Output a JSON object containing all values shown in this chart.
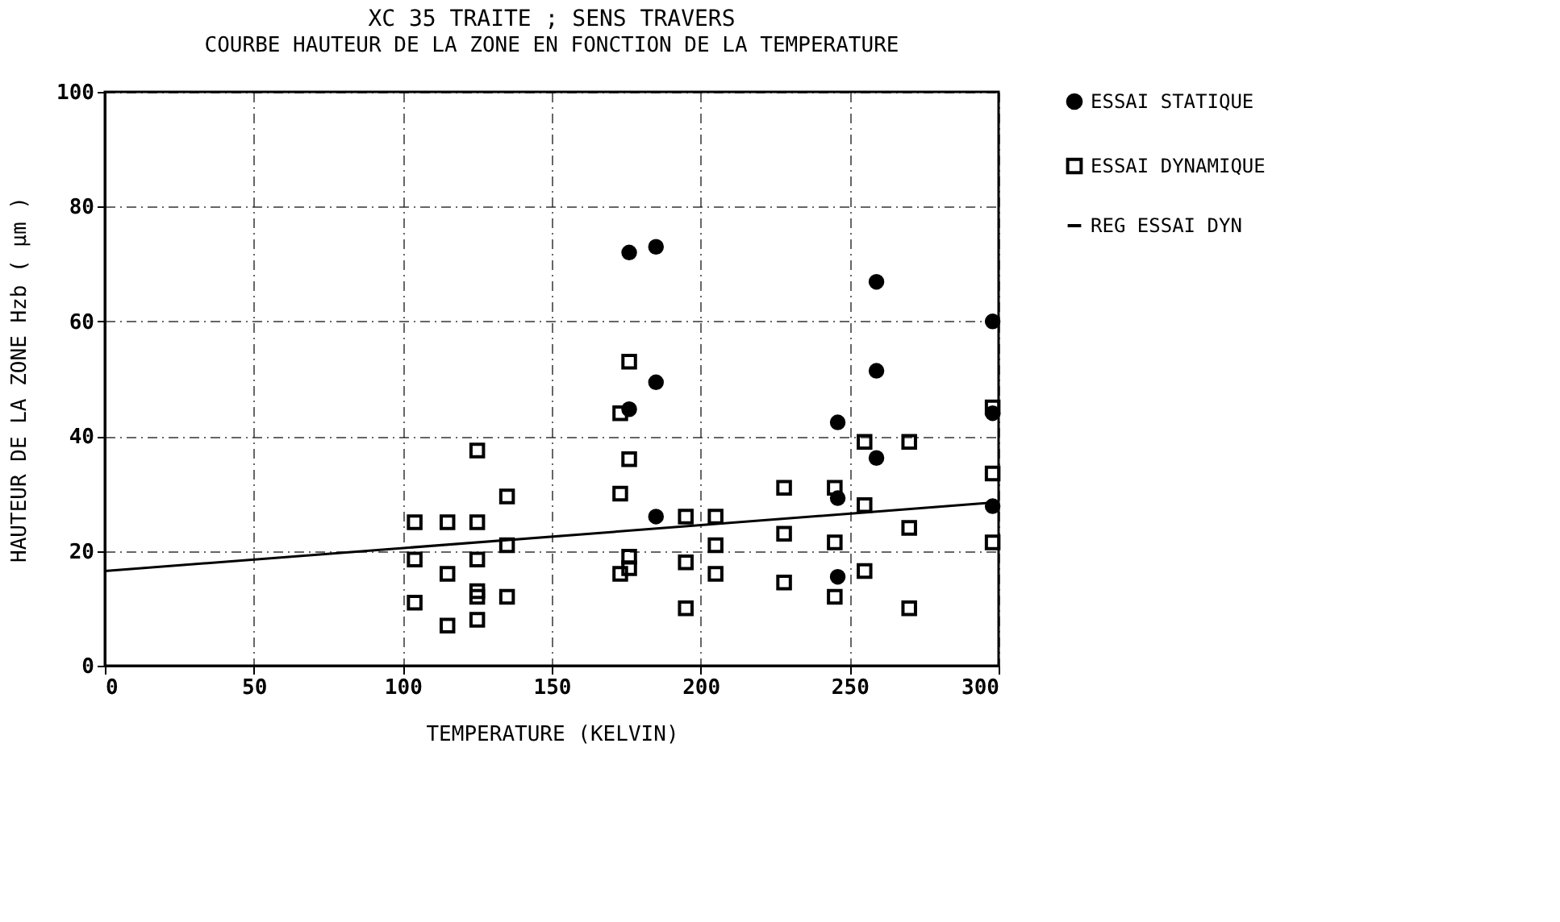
{
  "chart_data": {
    "type": "scatter",
    "title": "XC 35 TRAITE ; SENS TRAVERS",
    "subtitle": "COURBE HAUTEUR DE LA ZONE EN FONCTION DE LA TEMPERATURE",
    "xlabel": "TEMPERATURE (KELVIN)",
    "ylabel": "HAUTEUR DE LA ZONE Hzb ( μm )",
    "xlim": [
      0,
      300
    ],
    "xticks": [
      0,
      50,
      100,
      150,
      200,
      250,
      300
    ],
    "ylim": [
      0,
      100
    ],
    "yticks": [
      0,
      20,
      40,
      60,
      80,
      100
    ],
    "grid": true,
    "legend": "right",
    "series": [
      {
        "name": "ESSAI STATIQUE",
        "marker": "circle",
        "color": "#000000",
        "x": [
          176,
          185,
          185,
          176,
          185,
          259,
          298,
          259,
          246,
          298,
          259,
          246,
          298,
          246
        ],
        "values": [
          72,
          73,
          49.4,
          44.7,
          26,
          66.9,
          60,
          51.4,
          42.4,
          44,
          36.2,
          29.2,
          27.8,
          15.5
        ]
      },
      {
        "name": "ESSAI DYNAMIQUE",
        "marker": "square",
        "color": "#000000",
        "x": [
          104,
          104,
          104,
          115,
          115,
          115,
          125,
          125,
          125,
          125,
          125,
          125,
          135,
          135,
          135,
          176,
          173,
          176,
          173,
          176,
          176,
          173,
          195,
          195,
          195,
          205,
          205,
          205,
          228,
          228,
          228,
          245,
          245,
          245,
          255,
          255,
          255,
          270,
          270,
          270,
          298,
          298,
          298
        ],
        "values": [
          25,
          18.5,
          11,
          25,
          16,
          7,
          37.5,
          25,
          18.5,
          13,
          12,
          8,
          29.5,
          21,
          12,
          53,
          44,
          36,
          30,
          19,
          17,
          16,
          26,
          18,
          10,
          26,
          21,
          16,
          31,
          23,
          14.5,
          31,
          21.5,
          12,
          39,
          28,
          16.5,
          39,
          24,
          10,
          33.5,
          21.5,
          45
        ]
      },
      {
        "name": "REG ESSAI DYN",
        "type": "line",
        "marker": "none",
        "line_style": "solid",
        "color": "#000000",
        "x": [
          0,
          300
        ],
        "values": [
          16.5,
          28.5
        ]
      }
    ]
  }
}
